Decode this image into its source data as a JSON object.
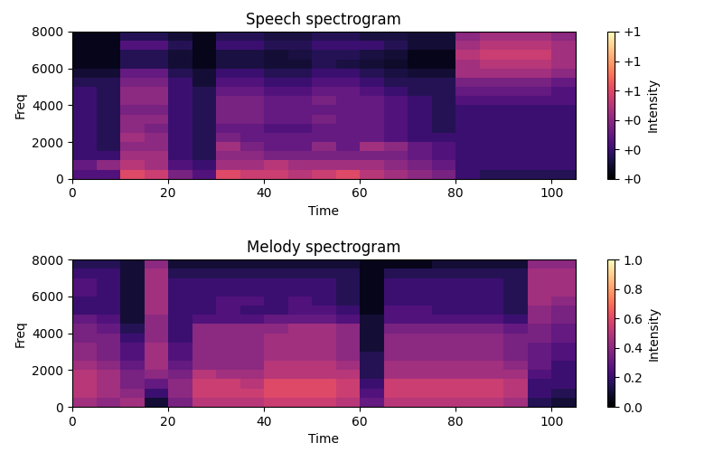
{
  "chart_data": [
    {
      "type": "heatmap",
      "title": "Speech spectrogram",
      "x_label": "Time",
      "y_label": "Freq",
      "xlim": [
        0,
        105
      ],
      "xticks": [
        0,
        20,
        40,
        60,
        80,
        100
      ],
      "ylim": [
        0,
        8000
      ],
      "yticks": [
        0,
        2000,
        4000,
        6000,
        8000
      ],
      "x": [
        2.5,
        7.5,
        12.5,
        17.5,
        22.5,
        27.5,
        32.5,
        37.5,
        42.5,
        47.5,
        52.5,
        57.5,
        62.5,
        67.5,
        72.5,
        77.5,
        82.5,
        87.5,
        92.5,
        97.5,
        102.5
      ],
      "y": [
        7750,
        7250,
        6750,
        6250,
        5750,
        5250,
        4750,
        4250,
        3750,
        3250,
        2750,
        2250,
        1750,
        1250,
        750,
        250
      ],
      "values": [
        [
          0.05,
          0.05,
          0.15,
          0.15,
          0.1,
          0.05,
          0.15,
          0.15,
          0.12,
          0.12,
          0.15,
          0.15,
          0.12,
          0.12,
          0.1,
          0.1,
          0.4,
          0.45,
          0.45,
          0.45,
          0.4
        ],
        [
          0.05,
          0.05,
          0.25,
          0.25,
          0.15,
          0.05,
          0.2,
          0.2,
          0.15,
          0.15,
          0.2,
          0.2,
          0.2,
          0.15,
          0.1,
          0.1,
          0.45,
          0.5,
          0.5,
          0.5,
          0.45
        ],
        [
          0.05,
          0.05,
          0.15,
          0.15,
          0.1,
          0.05,
          0.12,
          0.12,
          0.1,
          0.12,
          0.15,
          0.15,
          0.12,
          0.1,
          0.05,
          0.05,
          0.5,
          0.55,
          0.55,
          0.55,
          0.45
        ],
        [
          0.05,
          0.05,
          0.15,
          0.15,
          0.1,
          0.05,
          0.12,
          0.12,
          0.1,
          0.1,
          0.15,
          0.12,
          0.1,
          0.08,
          0.05,
          0.05,
          0.45,
          0.5,
          0.5,
          0.5,
          0.45
        ],
        [
          0.1,
          0.1,
          0.3,
          0.3,
          0.15,
          0.1,
          0.2,
          0.2,
          0.15,
          0.15,
          0.2,
          0.2,
          0.15,
          0.12,
          0.1,
          0.1,
          0.45,
          0.45,
          0.45,
          0.45,
          0.4
        ],
        [
          0.15,
          0.15,
          0.35,
          0.35,
          0.2,
          0.1,
          0.25,
          0.25,
          0.2,
          0.2,
          0.25,
          0.25,
          0.2,
          0.15,
          0.15,
          0.15,
          0.35,
          0.35,
          0.35,
          0.35,
          0.3
        ],
        [
          0.2,
          0.15,
          0.4,
          0.4,
          0.2,
          0.15,
          0.3,
          0.3,
          0.25,
          0.25,
          0.3,
          0.3,
          0.25,
          0.2,
          0.15,
          0.15,
          0.3,
          0.3,
          0.3,
          0.3,
          0.25
        ],
        [
          0.2,
          0.15,
          0.4,
          0.4,
          0.2,
          0.15,
          0.35,
          0.35,
          0.3,
          0.3,
          0.35,
          0.3,
          0.3,
          0.25,
          0.2,
          0.15,
          0.25,
          0.25,
          0.25,
          0.25,
          0.25
        ],
        [
          0.2,
          0.15,
          0.35,
          0.35,
          0.2,
          0.15,
          0.35,
          0.35,
          0.3,
          0.3,
          0.3,
          0.3,
          0.3,
          0.25,
          0.2,
          0.15,
          0.2,
          0.2,
          0.2,
          0.2,
          0.2
        ],
        [
          0.2,
          0.15,
          0.4,
          0.4,
          0.2,
          0.15,
          0.35,
          0.35,
          0.3,
          0.3,
          0.35,
          0.3,
          0.3,
          0.25,
          0.2,
          0.15,
          0.2,
          0.2,
          0.2,
          0.2,
          0.2
        ],
        [
          0.2,
          0.15,
          0.4,
          0.35,
          0.2,
          0.15,
          0.3,
          0.3,
          0.25,
          0.25,
          0.3,
          0.3,
          0.3,
          0.25,
          0.2,
          0.15,
          0.2,
          0.2,
          0.2,
          0.2,
          0.2
        ],
        [
          0.2,
          0.15,
          0.45,
          0.4,
          0.2,
          0.15,
          0.35,
          0.3,
          0.3,
          0.3,
          0.3,
          0.3,
          0.3,
          0.25,
          0.2,
          0.2,
          0.2,
          0.2,
          0.2,
          0.2,
          0.2
        ],
        [
          0.2,
          0.15,
          0.4,
          0.4,
          0.2,
          0.15,
          0.45,
          0.35,
          0.3,
          0.3,
          0.4,
          0.3,
          0.45,
          0.4,
          0.3,
          0.25,
          0.2,
          0.2,
          0.2,
          0.2,
          0.2
        ],
        [
          0.2,
          0.2,
          0.45,
          0.45,
          0.2,
          0.15,
          0.4,
          0.4,
          0.35,
          0.35,
          0.35,
          0.35,
          0.35,
          0.35,
          0.3,
          0.25,
          0.2,
          0.2,
          0.2,
          0.2,
          0.2
        ],
        [
          0.3,
          0.4,
          0.5,
          0.45,
          0.25,
          0.2,
          0.45,
          0.45,
          0.5,
          0.45,
          0.45,
          0.45,
          0.45,
          0.4,
          0.35,
          0.3,
          0.2,
          0.2,
          0.2,
          0.2,
          0.2
        ],
        [
          0.25,
          0.25,
          0.6,
          0.55,
          0.35,
          0.25,
          0.6,
          0.55,
          0.55,
          0.5,
          0.55,
          0.6,
          0.5,
          0.45,
          0.4,
          0.35,
          0.2,
          0.15,
          0.15,
          0.15,
          0.15
        ]
      ],
      "color_range": [
        0,
        1
      ],
      "color_ticks": [
        {
          "value": 0,
          "label": "+0"
        },
        {
          "value": 0.2,
          "label": "+0"
        },
        {
          "value": 0.4,
          "label": "+0"
        },
        {
          "value": 0.6,
          "label": "+1"
        },
        {
          "value": 0.8,
          "label": "+1"
        },
        {
          "value": 1.0,
          "label": "+1"
        }
      ],
      "color_label": "Intensity"
    },
    {
      "type": "heatmap",
      "title": "Melody spectrogram",
      "x_label": "Time",
      "y_label": "Freq",
      "xlim": [
        0,
        105
      ],
      "xticks": [
        0,
        20,
        40,
        60,
        80,
        100
      ],
      "ylim": [
        0,
        8000
      ],
      "yticks": [
        0,
        2000,
        4000,
        6000,
        8000
      ],
      "x": [
        2.5,
        7.5,
        12.5,
        17.5,
        22.5,
        27.5,
        32.5,
        37.5,
        42.5,
        47.5,
        52.5,
        57.5,
        62.5,
        67.5,
        72.5,
        77.5,
        82.5,
        87.5,
        92.5,
        97.5,
        102.5
      ],
      "y": [
        7750,
        7250,
        6750,
        6250,
        5750,
        5250,
        4750,
        4250,
        3750,
        3250,
        2750,
        2250,
        1750,
        1250,
        750,
        250
      ],
      "values": [
        [
          0.15,
          0.15,
          0.1,
          0.4,
          0.1,
          0.1,
          0.1,
          0.1,
          0.1,
          0.1,
          0.1,
          0.1,
          0.05,
          0.05,
          0.05,
          0.1,
          0.1,
          0.1,
          0.1,
          0.4,
          0.4
        ],
        [
          0.2,
          0.2,
          0.1,
          0.45,
          0.15,
          0.15,
          0.15,
          0.15,
          0.15,
          0.15,
          0.15,
          0.15,
          0.05,
          0.15,
          0.15,
          0.15,
          0.15,
          0.15,
          0.15,
          0.45,
          0.45
        ],
        [
          0.25,
          0.2,
          0.1,
          0.45,
          0.2,
          0.2,
          0.2,
          0.2,
          0.2,
          0.2,
          0.2,
          0.15,
          0.05,
          0.2,
          0.2,
          0.2,
          0.2,
          0.2,
          0.15,
          0.45,
          0.45
        ],
        [
          0.25,
          0.2,
          0.1,
          0.45,
          0.2,
          0.2,
          0.2,
          0.2,
          0.2,
          0.2,
          0.2,
          0.15,
          0.05,
          0.2,
          0.2,
          0.2,
          0.2,
          0.2,
          0.15,
          0.45,
          0.45
        ],
        [
          0.2,
          0.2,
          0.1,
          0.45,
          0.2,
          0.2,
          0.25,
          0.25,
          0.2,
          0.25,
          0.2,
          0.15,
          0.05,
          0.2,
          0.2,
          0.2,
          0.2,
          0.2,
          0.15,
          0.45,
          0.4
        ],
        [
          0.2,
          0.2,
          0.1,
          0.45,
          0.2,
          0.2,
          0.25,
          0.2,
          0.2,
          0.25,
          0.25,
          0.2,
          0.05,
          0.25,
          0.25,
          0.2,
          0.2,
          0.2,
          0.15,
          0.4,
          0.35
        ],
        [
          0.3,
          0.25,
          0.1,
          0.4,
          0.2,
          0.25,
          0.25,
          0.25,
          0.3,
          0.3,
          0.3,
          0.25,
          0.1,
          0.25,
          0.25,
          0.25,
          0.25,
          0.25,
          0.2,
          0.4,
          0.35
        ],
        [
          0.35,
          0.3,
          0.15,
          0.4,
          0.2,
          0.4,
          0.4,
          0.4,
          0.4,
          0.45,
          0.45,
          0.4,
          0.1,
          0.35,
          0.35,
          0.35,
          0.35,
          0.35,
          0.3,
          0.35,
          0.3
        ],
        [
          0.35,
          0.35,
          0.2,
          0.4,
          0.2,
          0.4,
          0.4,
          0.4,
          0.45,
          0.45,
          0.45,
          0.4,
          0.1,
          0.4,
          0.4,
          0.4,
          0.4,
          0.4,
          0.35,
          0.35,
          0.3
        ],
        [
          0.4,
          0.35,
          0.25,
          0.45,
          0.25,
          0.4,
          0.4,
          0.4,
          0.45,
          0.45,
          0.45,
          0.4,
          0.1,
          0.4,
          0.4,
          0.4,
          0.4,
          0.4,
          0.35,
          0.3,
          0.25
        ],
        [
          0.4,
          0.35,
          0.25,
          0.45,
          0.25,
          0.4,
          0.4,
          0.4,
          0.45,
          0.45,
          0.45,
          0.4,
          0.15,
          0.4,
          0.4,
          0.4,
          0.4,
          0.4,
          0.35,
          0.3,
          0.25
        ],
        [
          0.45,
          0.4,
          0.3,
          0.45,
          0.3,
          0.4,
          0.4,
          0.4,
          0.5,
          0.5,
          0.5,
          0.45,
          0.15,
          0.45,
          0.45,
          0.45,
          0.45,
          0.45,
          0.4,
          0.3,
          0.2
        ],
        [
          0.5,
          0.45,
          0.35,
          0.4,
          0.35,
          0.5,
          0.45,
          0.45,
          0.5,
          0.5,
          0.5,
          0.5,
          0.15,
          0.45,
          0.45,
          0.45,
          0.45,
          0.45,
          0.45,
          0.25,
          0.2
        ],
        [
          0.5,
          0.45,
          0.35,
          0.3,
          0.4,
          0.55,
          0.55,
          0.5,
          0.6,
          0.6,
          0.6,
          0.55,
          0.2,
          0.55,
          0.55,
          0.55,
          0.55,
          0.55,
          0.5,
          0.2,
          0.2
        ],
        [
          0.5,
          0.45,
          0.4,
          0.2,
          0.4,
          0.55,
          0.55,
          0.55,
          0.6,
          0.6,
          0.6,
          0.55,
          0.25,
          0.55,
          0.55,
          0.55,
          0.55,
          0.55,
          0.5,
          0.2,
          0.15
        ],
        [
          0.45,
          0.4,
          0.45,
          0.1,
          0.35,
          0.5,
          0.5,
          0.5,
          0.55,
          0.55,
          0.55,
          0.5,
          0.3,
          0.5,
          0.5,
          0.5,
          0.5,
          0.5,
          0.45,
          0.15,
          0.1
        ]
      ],
      "color_range": [
        0,
        1
      ],
      "color_ticks": [
        {
          "value": 0,
          "label": "0.0"
        },
        {
          "value": 0.2,
          "label": "0.2"
        },
        {
          "value": 0.4,
          "label": "0.4"
        },
        {
          "value": 0.6,
          "label": "0.6"
        },
        {
          "value": 0.8,
          "label": "0.8"
        },
        {
          "value": 1.0,
          "label": "1.0"
        }
      ],
      "color_label": "Intensity"
    }
  ]
}
